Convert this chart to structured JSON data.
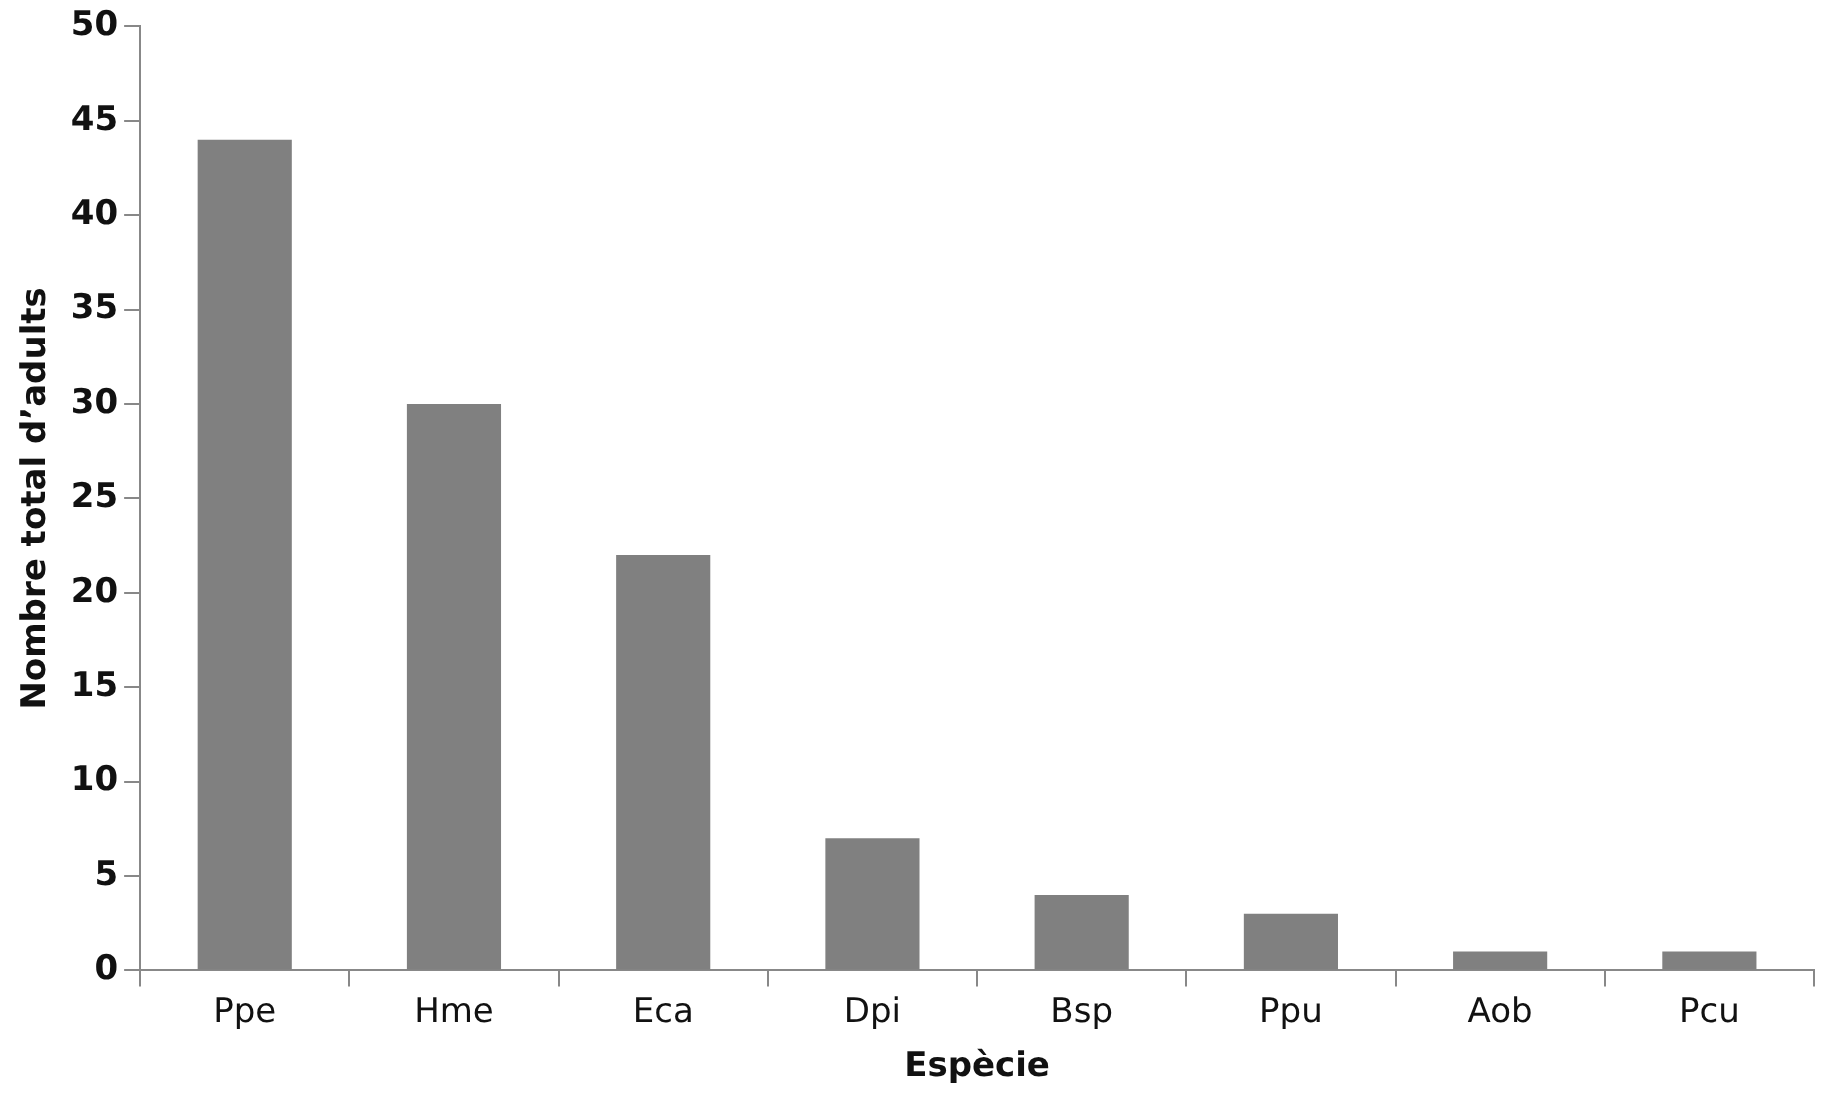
{
  "chart_data": {
    "type": "bar",
    "xlabel": "Espècie",
    "ylabel": "Nombre total d’adults",
    "categories": [
      "Ppe",
      "Hme",
      "Eca",
      "Dpi",
      "Bsp",
      "Ppu",
      "Aob",
      "Pcu"
    ],
    "values": [
      44,
      30,
      22,
      7,
      4,
      3,
      1,
      1
    ],
    "color": "#808080",
    "ylim": [
      0,
      50
    ],
    "yticks": [
      0,
      5,
      10,
      15,
      20,
      25,
      30,
      35,
      40,
      45,
      50
    ]
  }
}
